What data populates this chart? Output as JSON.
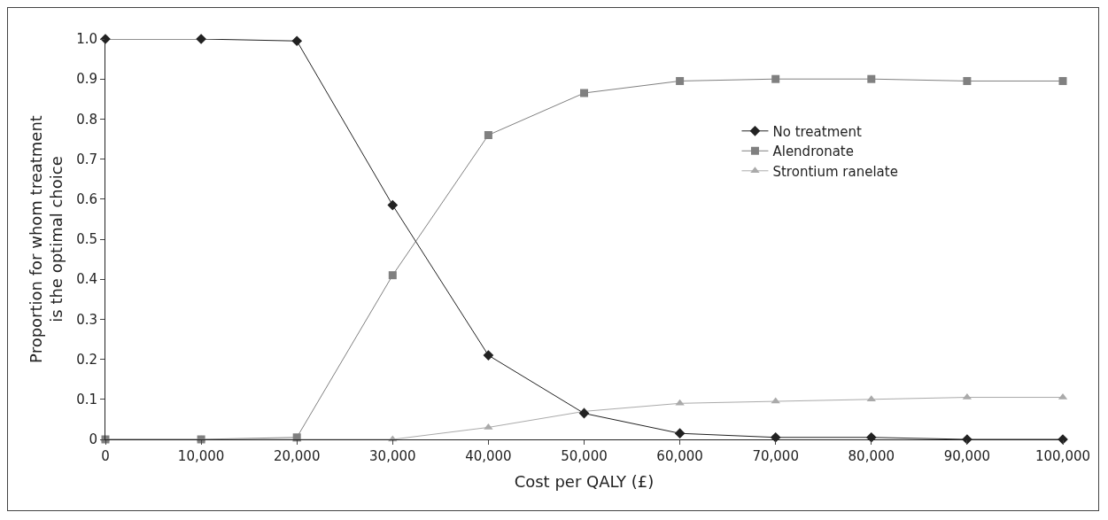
{
  "chart_data": {
    "type": "line",
    "xlabel": "Cost per QALY (£)",
    "ylabel": "Proportion for whom treatment is the optimal choice",
    "x": [
      0,
      10000,
      20000,
      30000,
      40000,
      50000,
      60000,
      70000,
      80000,
      90000,
      100000
    ],
    "xlim": [
      0,
      100000
    ],
    "xticks": [
      {
        "value": 0,
        "label": "0"
      },
      {
        "value": 10000,
        "label": "10,000"
      },
      {
        "value": 20000,
        "label": "20,000"
      },
      {
        "value": 30000,
        "label": "30,000"
      },
      {
        "value": 40000,
        "label": "40,000"
      },
      {
        "value": 50000,
        "label": "50,000"
      },
      {
        "value": 60000,
        "label": "60,000"
      },
      {
        "value": 70000,
        "label": "70,000"
      },
      {
        "value": 80000,
        "label": "80,000"
      },
      {
        "value": 90000,
        "label": "90,000"
      },
      {
        "value": 100000,
        "label": "100,000"
      }
    ],
    "ylim": [
      0,
      1
    ],
    "yticks": [
      0,
      {
        "value": 0.1,
        "label": "0.1"
      },
      {
        "value": 0.2,
        "label": "0.2"
      },
      {
        "value": 0.3,
        "label": "0.3"
      },
      {
        "value": 0.4,
        "label": "0.4"
      },
      {
        "value": 0.5,
        "label": "0.5"
      },
      {
        "value": 0.6,
        "label": "0.6"
      },
      {
        "value": 0.7,
        "label": "0.7"
      },
      {
        "value": 0.8,
        "label": "0.8"
      },
      {
        "value": 0.9,
        "label": "0.9"
      },
      {
        "value": 1,
        "label": "1.0"
      }
    ],
    "grid": false,
    "legend": "right",
    "line_style": "solid",
    "series": [
      {
        "name": "No treatment",
        "color": "#222222",
        "marker": "diamond",
        "values": [
          1,
          1,
          0.995,
          0.585,
          0.21,
          0.065,
          0.015,
          0.005,
          0.005,
          0,
          0
        ]
      },
      {
        "name": "Alendronate",
        "color": "#808080",
        "marker": "square",
        "values": [
          0,
          0,
          0.005,
          0.41,
          0.76,
          0.865,
          0.895,
          0.9,
          0.9,
          0.895,
          0.895
        ]
      },
      {
        "name": "Strontium ranelate",
        "color": "#aaaaaa",
        "marker": "triangle",
        "values": [
          0,
          0,
          0,
          0,
          0.03,
          0.07,
          0.09,
          0.095,
          0.1,
          0.105,
          0.105
        ]
      }
    ]
  }
}
